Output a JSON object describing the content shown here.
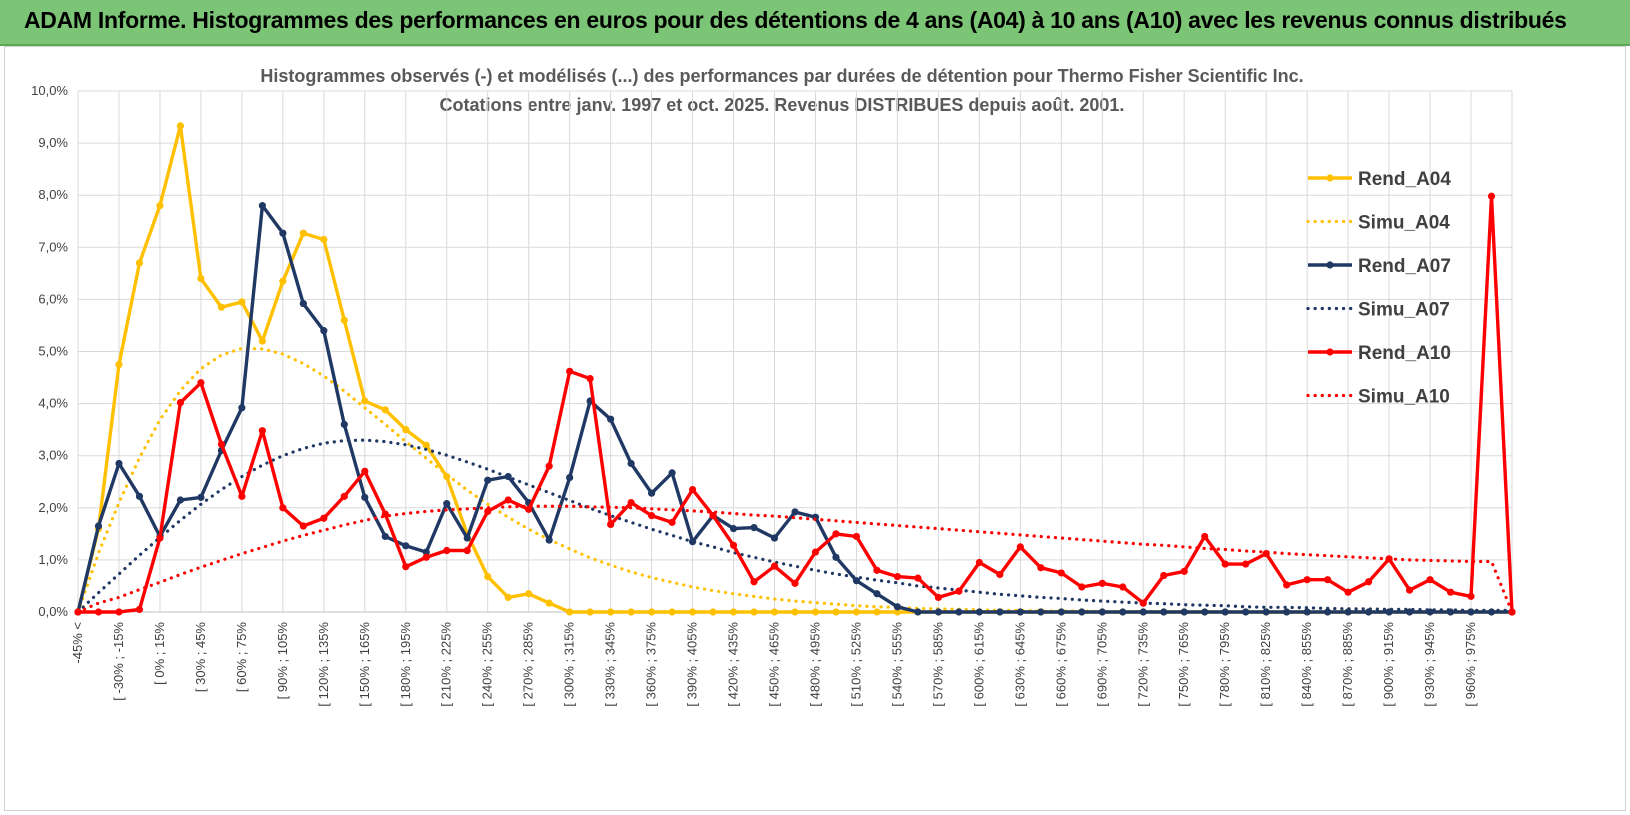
{
  "banner": {
    "title": "ADAM Informe. Histogrammes des performances en euros pour des détentions de 4 ans (A04) à 10 ans (A10) avec les revenus connus distribués"
  },
  "colors": {
    "banner_bg": "#7cc576",
    "A04": "#ffc000",
    "A07": "#1f3864",
    "A10": "#ff0000",
    "grid": "#d9d9d9"
  },
  "chart_data": {
    "type": "line",
    "title_line1": "Histogrammes observés (-) et modélisés (...) des performances par durées de détention pour Thermo Fisher Scientific Inc.",
    "title_line2": "Cotations entre janv. 1997 et oct. 2025.  Revenus DISTRIBUES depuis août. 2001.",
    "ylim": [
      0,
      10
    ],
    "yticks": [
      "0,0%",
      "1,0%",
      "2,0%",
      "3,0%",
      "4,0%",
      "5,0%",
      "6,0%",
      "7,0%",
      "8,0%",
      "9,0%",
      "10,0%"
    ],
    "xlabels": [
      "-45% <",
      "[ -30% ; -15%",
      "[ 0% ; 15%",
      "[ 30% ; 45%",
      "[ 60% ; 75%",
      "[ 90% ; 105%",
      "[ 120% ; 135%",
      "[ 150% ; 165%",
      "[ 180% ; 195%",
      "[ 210% ; 225%",
      "[ 240% ; 255%",
      "[ 270% ; 285%",
      "[ 300% ; 315%",
      "[ 330% ; 345%",
      "[ 360% ; 375%",
      "[ 390% ; 405%",
      "[ 420% ; 435%",
      "[ 450% ; 465%",
      "[ 480% ; 495%",
      "[ 510% ; 525%",
      "[ 540% ; 555%",
      "[ 570% ; 585%",
      "[ 600% ; 615%",
      "[ 630% ; 645%",
      "[ 660% ; 675%",
      "[ 690% ; 705%",
      "[ 720% ; 735%",
      "[ 750% ; 765%",
      "[ 780% ; 795%",
      "[ 810% ; 825%",
      "[ 840% ; 855%",
      "[ 870% ; 885%",
      "[ 900% ; 915%",
      "[ 930% ; 945%",
      "[ 960% ; 975%"
    ],
    "n_categories": 71,
    "series": [
      {
        "name": "Rend_A04",
        "style": "solid",
        "color": "#ffc000",
        "values": [
          0,
          1.6,
          4.75,
          6.7,
          7.8,
          9.33,
          6.4,
          5.85,
          5.95,
          5.2,
          6.35,
          7.27,
          7.15,
          5.6,
          4.05,
          3.88,
          3.5,
          3.2,
          2.6,
          1.5,
          0.68,
          0.28,
          0.35,
          0.17,
          0,
          0,
          0,
          0,
          0,
          0,
          0,
          0,
          0,
          0,
          0,
          0,
          0,
          0,
          0,
          0,
          0,
          0,
          0,
          0,
          0,
          0,
          0,
          0,
          0,
          0,
          0,
          0,
          0,
          0,
          0,
          0,
          0,
          0,
          0,
          0,
          0,
          0,
          0,
          0,
          0,
          0,
          0,
          0,
          0,
          0,
          0
        ]
      },
      {
        "name": "Simu_A04",
        "style": "dotted",
        "color": "#ffc000",
        "values": [
          0,
          1.13,
          2.1,
          2.96,
          3.69,
          4.25,
          4.67,
          4.93,
          5.06,
          5.05,
          4.95,
          4.77,
          4.53,
          4.24,
          3.92,
          3.6,
          3.27,
          2.95,
          2.64,
          2.34,
          2.07,
          1.82,
          1.59,
          1.39,
          1.21,
          1.04,
          0.9,
          0.77,
          0.66,
          0.57,
          0.48,
          0.41,
          0.35,
          0.3,
          0.25,
          0.21,
          0.18,
          0.15,
          0.12,
          0.1,
          0.09,
          0.07,
          0.06,
          0.05,
          0.04,
          0.03,
          0.03,
          0.02,
          0.02,
          0.02,
          0.01,
          0.01,
          0.01,
          0.01,
          0.01,
          0.01,
          0,
          0,
          0,
          0,
          0,
          0,
          0,
          0,
          0,
          0,
          0,
          0,
          0,
          0,
          0
        ]
      },
      {
        "name": "Rend_A07",
        "style": "solid",
        "color": "#1f3864",
        "values": [
          0,
          1.65,
          2.85,
          2.22,
          1.45,
          2.15,
          2.2,
          3.1,
          3.92,
          7.8,
          7.27,
          5.92,
          5.4,
          3.6,
          2.2,
          1.45,
          1.27,
          1.15,
          2.08,
          1.42,
          2.53,
          2.6,
          2.1,
          1.38,
          2.58,
          4.05,
          3.7,
          2.85,
          2.28,
          2.67,
          1.35,
          1.85,
          1.6,
          1.62,
          1.42,
          1.92,
          1.82,
          1.05,
          0.6,
          0.35,
          0.1,
          0,
          0,
          0,
          0,
          0,
          0,
          0,
          0,
          0,
          0,
          0,
          0,
          0,
          0,
          0,
          0,
          0,
          0,
          0,
          0,
          0,
          0,
          0,
          0,
          0,
          0,
          0,
          0,
          0,
          0
        ]
      },
      {
        "name": "Simu_A07",
        "style": "dotted",
        "color": "#1f3864",
        "values": [
          0,
          0.37,
          0.73,
          1.09,
          1.43,
          1.76,
          2.07,
          2.35,
          2.6,
          2.82,
          3.0,
          3.14,
          3.24,
          3.29,
          3.3,
          3.27,
          3.21,
          3.12,
          3.01,
          2.88,
          2.74,
          2.59,
          2.44,
          2.29,
          2.14,
          1.99,
          1.85,
          1.72,
          1.59,
          1.47,
          1.35,
          1.25,
          1.14,
          1.05,
          0.96,
          0.88,
          0.8,
          0.73,
          0.67,
          0.61,
          0.56,
          0.5,
          0.46,
          0.42,
          0.38,
          0.34,
          0.31,
          0.28,
          0.26,
          0.23,
          0.21,
          0.19,
          0.17,
          0.16,
          0.14,
          0.13,
          0.12,
          0.1,
          0.09,
          0.09,
          0.08,
          0.07,
          0.06,
          0.06,
          0.05,
          0.05,
          0.04,
          0.04,
          0.03,
          0.03,
          0.03
        ]
      },
      {
        "name": "Rend_A10",
        "style": "solid",
        "color": "#ff0000",
        "values": [
          0,
          0,
          0,
          0.05,
          1.42,
          4.02,
          4.4,
          3.22,
          2.22,
          3.48,
          2.0,
          1.65,
          1.8,
          2.22,
          2.7,
          1.88,
          0.87,
          1.05,
          1.18,
          1.18,
          1.93,
          2.15,
          1.97,
          2.8,
          4.62,
          4.48,
          1.68,
          2.1,
          1.85,
          1.72,
          2.35,
          1.85,
          1.28,
          0.58,
          0.88,
          0.55,
          1.15,
          1.5,
          1.45,
          0.8,
          0.68,
          0.65,
          0.28,
          0.4,
          0.95,
          0.72,
          1.25,
          0.85,
          0.75,
          0.48,
          0.55,
          0.48,
          0.17,
          0.7,
          0.78,
          1.45,
          0.92,
          0.92,
          1.12,
          0.52,
          0.62,
          0.62,
          0.38,
          0.58,
          1.02,
          0.42,
          0.62,
          0.38,
          0.3,
          7.98,
          0
        ]
      },
      {
        "name": "Simu_A10",
        "style": "dotted",
        "color": "#ff0000",
        "values": [
          0,
          0.17,
          0.28,
          0.43,
          0.57,
          0.72,
          0.86,
          0.99,
          1.12,
          1.24,
          1.36,
          1.47,
          1.57,
          1.67,
          1.76,
          1.84,
          1.89,
          1.93,
          1.96,
          1.98,
          2.0,
          2.02,
          2.03,
          2.03,
          2.03,
          2.02,
          2.01,
          2.0,
          1.98,
          1.96,
          1.94,
          1.92,
          1.89,
          1.86,
          1.84,
          1.81,
          1.78,
          1.75,
          1.72,
          1.69,
          1.66,
          1.63,
          1.6,
          1.57,
          1.54,
          1.51,
          1.48,
          1.45,
          1.42,
          1.39,
          1.36,
          1.33,
          1.3,
          1.28,
          1.25,
          1.22,
          1.2,
          1.17,
          1.15,
          1.12,
          1.1,
          1.08,
          1.06,
          1.04,
          1.02,
          1.0,
          0.99,
          0.98,
          0.97,
          0.97,
          0
        ]
      }
    ],
    "legend": [
      "Rend_A04",
      "Simu_A04",
      "Rend_A07",
      "Simu_A07",
      "Rend_A10",
      "Simu_A10"
    ],
    "legend_position": "right"
  }
}
